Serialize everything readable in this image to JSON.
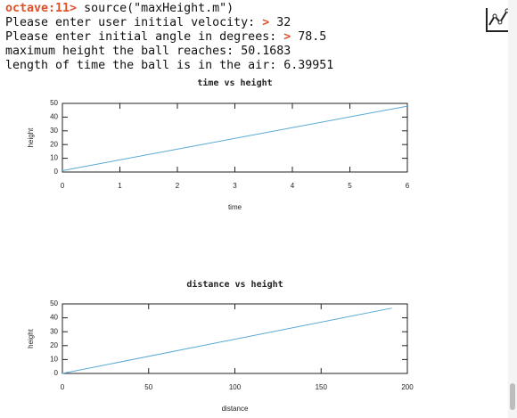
{
  "terminal": {
    "lines": [
      [
        "octave:11>",
        "source(\"maxHeight.m\")"
      ],
      [
        "Please enter user initial velocity:",
        ">",
        "32"
      ],
      [
        "Please enter initial angle in degrees:",
        ">",
        "78.5"
      ],
      [
        "maximum height the ball reaches:",
        "50.1683"
      ],
      [
        "length of time the ball is in the air:",
        "6.39951"
      ]
    ]
  },
  "plots": [
    {
      "title": "time vs height",
      "xlabel": "time",
      "ylabel": "height",
      "xlim": [
        0,
        6
      ],
      "ylim": [
        0,
        50
      ],
      "xticks": [
        0,
        1,
        2,
        3,
        4,
        5,
        6
      ],
      "yticks": [
        0,
        10,
        20,
        30,
        40,
        50
      ],
      "color": "#5aa9d6",
      "line": {
        "x": [
          0,
          6
        ],
        "y": [
          1,
          48
        ]
      }
    },
    {
      "title": "distance vs height",
      "xlabel": "distance",
      "ylabel": "height",
      "xlim": [
        0,
        200
      ],
      "ylim": [
        0,
        50
      ],
      "xticks": [
        0,
        50,
        100,
        150,
        200
      ],
      "yticks": [
        0,
        10,
        20,
        30,
        40,
        50
      ],
      "color": "#5aa9d6",
      "line": {
        "x": [
          0,
          191
        ],
        "y": [
          0,
          47
        ]
      }
    }
  ]
}
